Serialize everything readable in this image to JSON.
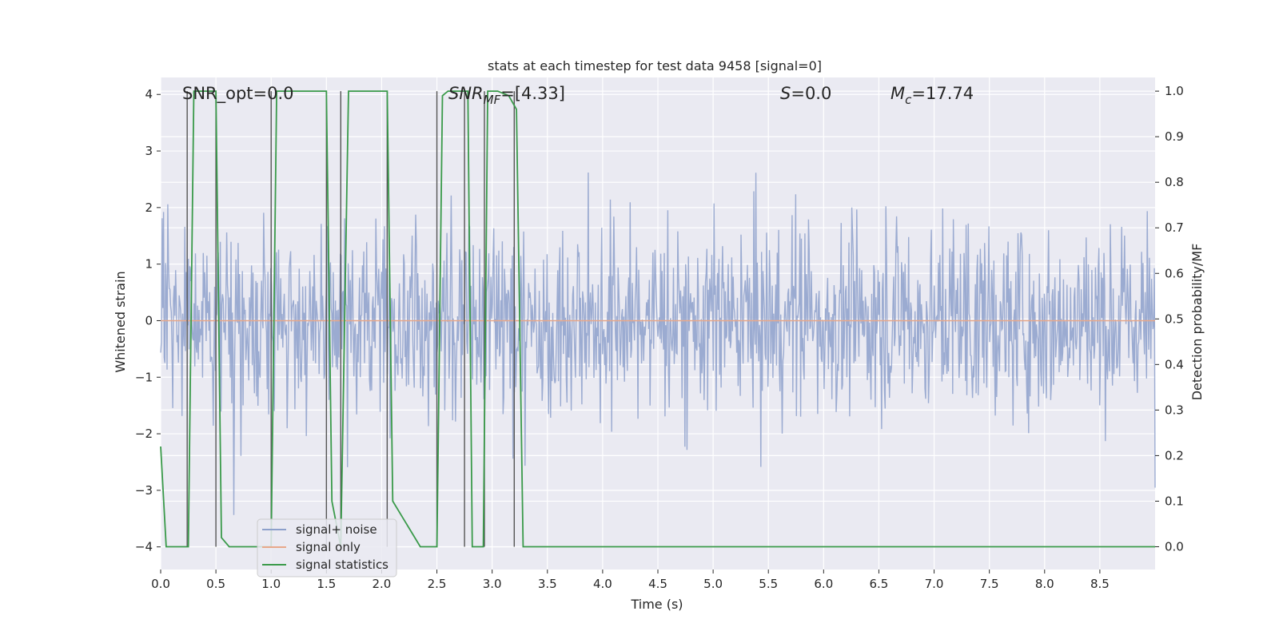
{
  "chart_data": {
    "type": "line",
    "title": "stats at each timestep for test data 9458 [signal=0]",
    "xlabel": "Time (s)",
    "ylabel_left": "Whitened strain",
    "ylabel_right": "Detection probability/MF",
    "xlim": [
      0.0,
      9.0
    ],
    "ylim_left": [
      -4.4,
      4.3
    ],
    "ylim_right": [
      -0.05,
      1.03
    ],
    "x_ticks": [
      0.0,
      0.5,
      1.0,
      1.5,
      2.0,
      2.5,
      3.0,
      3.5,
      4.0,
      4.5,
      5.0,
      5.5,
      6.0,
      6.5,
      7.0,
      7.5,
      8.0,
      8.5
    ],
    "x_tick_labels": [
      "0.0",
      "0.5",
      "1.0",
      "1.5",
      "2.0",
      "2.5",
      "3.0",
      "3.5",
      "4.0",
      "4.5",
      "5.0",
      "5.5",
      "6.0",
      "6.5",
      "7.0",
      "7.5",
      "8.0",
      "8.5"
    ],
    "y_left_ticks": [
      4,
      3,
      2,
      1,
      0,
      -1,
      -2,
      -3,
      -4
    ],
    "y_left_tick_labels": [
      "4",
      "3",
      "2",
      "1",
      "0",
      "−1",
      "−2",
      "−3",
      "−4"
    ],
    "y_right_ticks": [
      1.0,
      0.9,
      0.8,
      0.7,
      0.6,
      0.5,
      0.4,
      0.3,
      0.2,
      0.1,
      0.0
    ],
    "y_right_tick_labels": [
      "1.0",
      "0.9",
      "0.8",
      "0.7",
      "0.6",
      "0.5",
      "0.4",
      "0.3",
      "0.2",
      "0.1",
      "0.0"
    ],
    "grid": true,
    "legend_position": "lower-left",
    "annotations": {
      "snr_opt": "SNR_opt=0.0",
      "snr_mf_main": "SNR",
      "snr_mf_sub": "MF",
      "snr_mf_value": "=[4.33]",
      "s_symbol": "S",
      "s_value": "=0.0",
      "mc_symbol": "M",
      "mc_sub": "c",
      "mc_value": "=17.74"
    },
    "series": [
      {
        "name": "signal+ noise",
        "color": "#8da0cb",
        "axis": "left",
        "description": "whitened noise, approx. gaussian, amplitude ~±1.6 typical with spikes to about ±3.5"
      },
      {
        "name": "signal only",
        "color": "#e8a88a",
        "axis": "left",
        "values_constant": 0.0
      },
      {
        "name": "signal statistics",
        "color": "#3a9a4a",
        "axis": "right",
        "x": [
          0.0,
          0.05,
          0.25,
          0.3,
          0.5,
          0.55,
          0.62,
          0.75,
          1.0,
          1.05,
          1.5,
          1.55,
          1.63,
          1.7,
          2.05,
          2.1,
          2.35,
          2.5,
          2.55,
          2.6,
          2.78,
          2.82,
          2.92,
          2.96,
          3.05,
          3.15,
          3.22,
          3.28,
          4.0,
          5.0,
          6.0,
          7.0,
          8.0,
          9.0
        ],
        "y": [
          0.22,
          0.0,
          0.0,
          1.0,
          1.0,
          0.02,
          0.0,
          0.0,
          0.0,
          1.0,
          1.0,
          0.1,
          0.0,
          1.0,
          1.0,
          0.1,
          0.0,
          0.0,
          0.99,
          1.0,
          1.0,
          0.0,
          0.0,
          1.0,
          1.0,
          0.99,
          0.96,
          0.0,
          0.0,
          0.0,
          0.0,
          0.0,
          0.0,
          0.0
        ]
      }
    ],
    "vertical_markers_x": [
      0.24,
      0.5,
      1.0,
      1.5,
      1.63,
      2.05,
      2.5,
      2.75,
      2.93,
      3.2
    ]
  },
  "legend": {
    "items": [
      {
        "label": "signal+ noise",
        "color": "#8da0cb"
      },
      {
        "label": "signal only",
        "color": "#e8a88a"
      },
      {
        "label": "signal statistics",
        "color": "#3a9a4a"
      }
    ]
  },
  "colors": {
    "plot_background": "#eaeaf2",
    "grid": "#ffffff",
    "marker_line": "#555555"
  }
}
